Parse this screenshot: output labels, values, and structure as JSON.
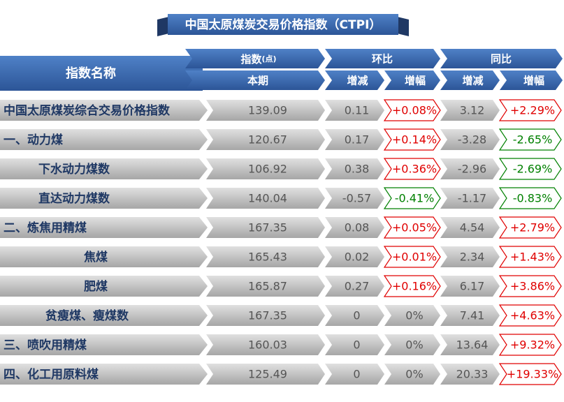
{
  "title": "中国太原煤炭交易价格指数（CTPI）",
  "header": {
    "name": "指数名称",
    "index": "指数",
    "index_unit": "(点)",
    "mom": "环比",
    "yoy": "同比",
    "current": "本期",
    "mom_change": "增减",
    "mom_pct": "增幅",
    "yoy_change": "增减",
    "yoy_pct": "增幅"
  },
  "table": {
    "rows": [
      [
        "中国太原煤炭综合交易价格指数",
        "139.09",
        "0.11",
        "+0.08%",
        "3.12",
        "+2.29%"
      ],
      [
        "一、动力煤",
        "120.67",
        "0.17",
        "+0.14%",
        "-3.28",
        "-2.65%"
      ],
      [
        "下水动力煤数",
        "106.92",
        "0.38",
        "+0.36%",
        "-2.96",
        "-2.69%"
      ],
      [
        "直达动力煤数",
        "140.04",
        "-0.57",
        "-0.41%",
        "-1.17",
        "-0.83%"
      ],
      [
        "二、炼焦用精煤",
        "167.35",
        "0.08",
        "+0.05%",
        "4.54",
        "+2.79%"
      ],
      [
        "焦煤",
        "165.43",
        "0.02",
        "+0.01%",
        "2.34",
        "+1.43%"
      ],
      [
        "肥煤",
        "165.87",
        "0.27",
        "+0.16%",
        "6.17",
        "+3.86%"
      ],
      [
        "贫瘦煤、瘦煤数",
        "167.35",
        "0",
        "0%",
        "7.41",
        "+4.63%"
      ],
      [
        "三、喷吹用精煤",
        "160.03",
        "0",
        "0%",
        "13.64",
        "+9.32%"
      ],
      [
        "四、化工用原料煤",
        "125.49",
        "0",
        "0%",
        "20.33",
        "+19.33%"
      ]
    ]
  }
}
